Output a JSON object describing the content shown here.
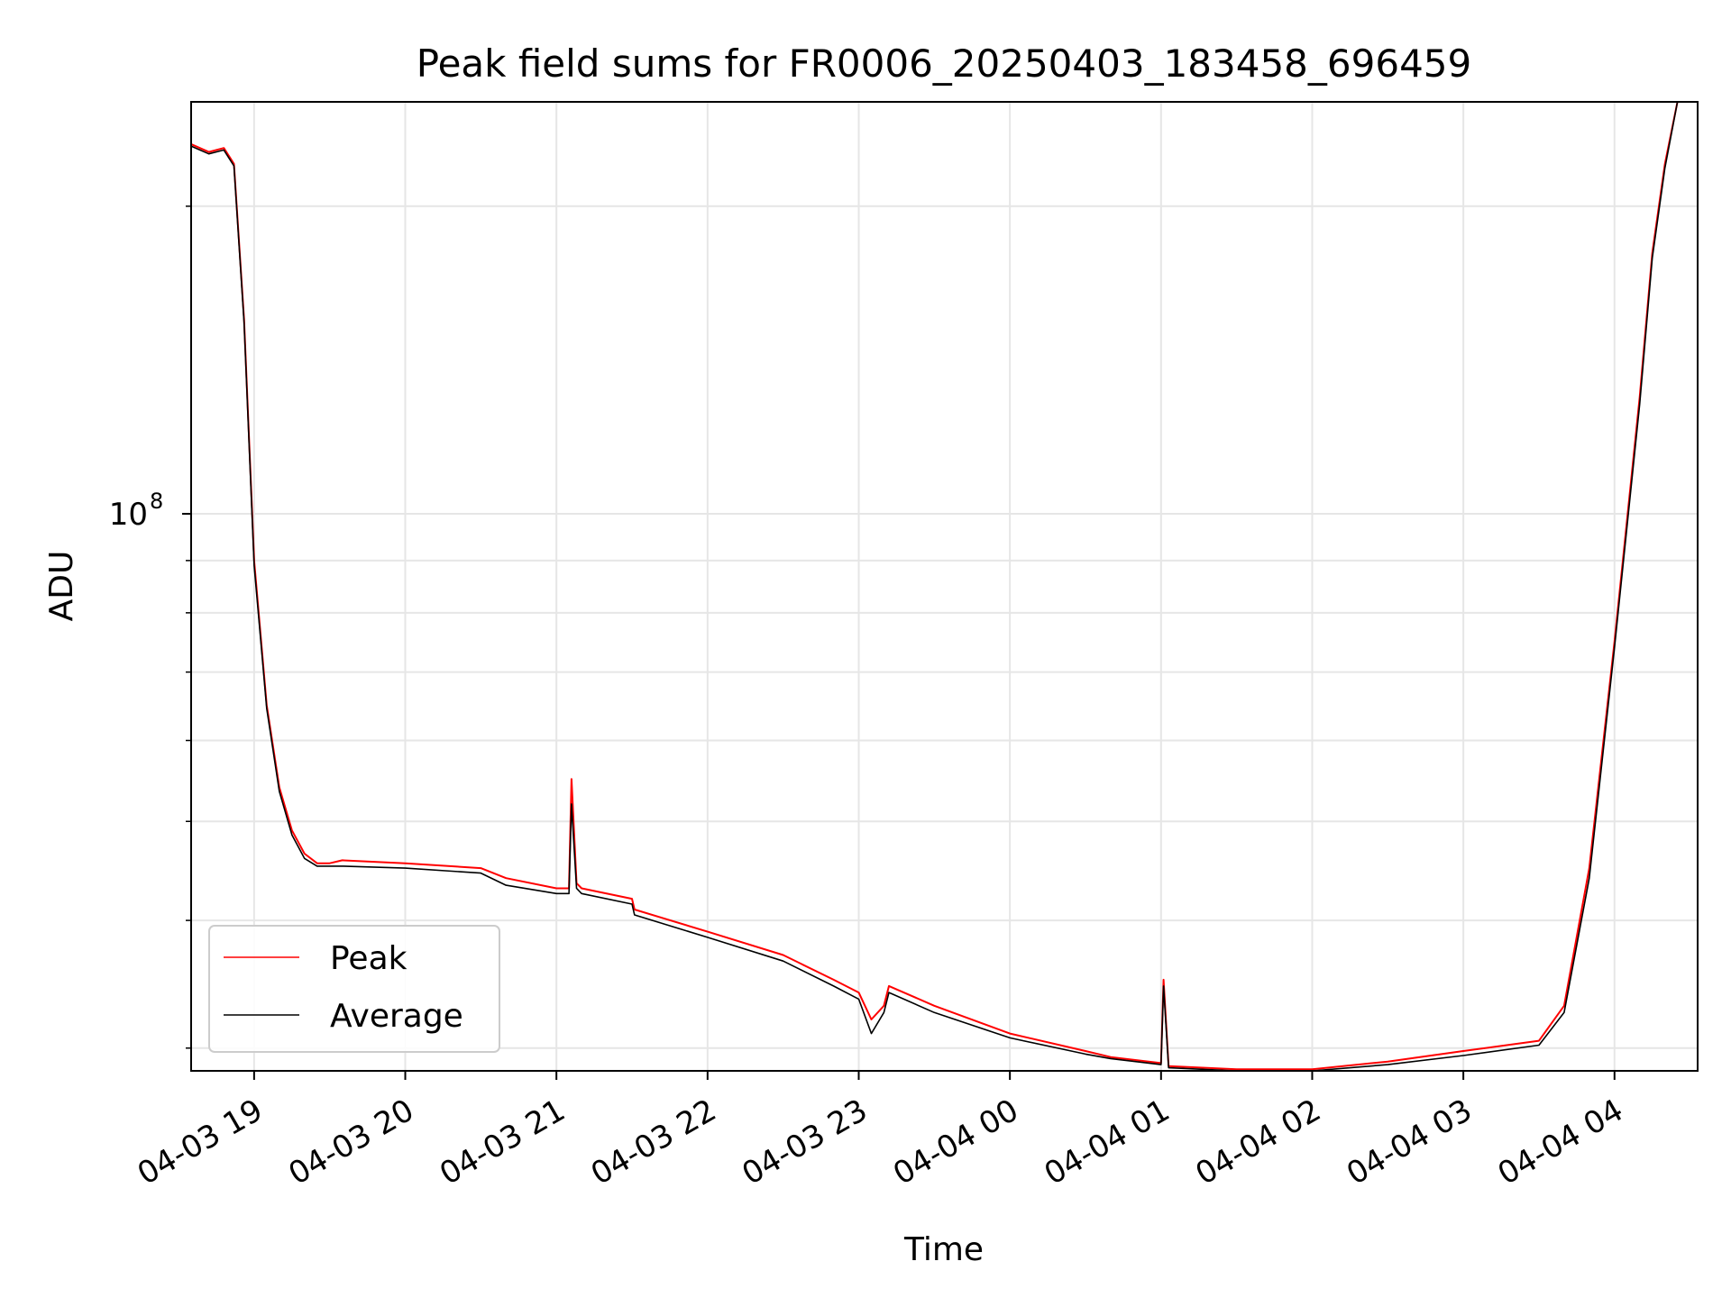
{
  "chart_data": {
    "type": "line",
    "title": "Peak field sums for FR0006_20250403_183458_696459",
    "xlabel": "Time",
    "ylabel": "ADU",
    "yscale": "log",
    "xlim": [
      "2025-04-03 18:35",
      "2025-04-04 04:33"
    ],
    "ylim": [
      28500000,
      253000000
    ],
    "x_ticks": [
      "04-03 19",
      "04-03 20",
      "04-03 21",
      "04-03 22",
      "04-03 23",
      "04-04 00",
      "04-04 01",
      "04-04 02",
      "04-04 03",
      "04-04 04"
    ],
    "y_major_tick_label": {
      "base": "10",
      "exponent": "8"
    },
    "y_major_tick_value": 100000000,
    "y_minor_tick_values": [
      30000000,
      40000000,
      50000000,
      60000000,
      70000000,
      80000000,
      90000000,
      200000000
    ],
    "grid": true,
    "legend_position": "lower-left",
    "series": [
      {
        "name": "Peak",
        "color": "#ff0000",
        "x": [
          "2025-04-03 18:35",
          "2025-04-03 18:42",
          "2025-04-03 18:48",
          "2025-04-03 18:52",
          "2025-04-03 18:56",
          "2025-04-03 19:00",
          "2025-04-03 19:05",
          "2025-04-03 19:10",
          "2025-04-03 19:15",
          "2025-04-03 19:20",
          "2025-04-03 19:25",
          "2025-04-03 19:30",
          "2025-04-03 19:35",
          "2025-04-03 20:00",
          "2025-04-03 20:30",
          "2025-04-03 20:40",
          "2025-04-03 21:00",
          "2025-04-03 21:05",
          "2025-04-03 21:06",
          "2025-04-03 21:08",
          "2025-04-03 21:10",
          "2025-04-03 21:30",
          "2025-04-03 21:31",
          "2025-04-03 22:00",
          "2025-04-03 22:30",
          "2025-04-03 22:50",
          "2025-04-03 23:00",
          "2025-04-03 23:05",
          "2025-04-03 23:10",
          "2025-04-03 23:12",
          "2025-04-03 23:30",
          "2025-04-04 00:00",
          "2025-04-04 00:30",
          "2025-04-04 00:40",
          "2025-04-04 01:00",
          "2025-04-04 01:01",
          "2025-04-04 01:03",
          "2025-04-04 01:30",
          "2025-04-04 02:00",
          "2025-04-04 02:30",
          "2025-04-04 03:00",
          "2025-04-04 03:30",
          "2025-04-04 03:40",
          "2025-04-04 03:50",
          "2025-04-04 04:00",
          "2025-04-04 04:10",
          "2025-04-04 04:15",
          "2025-04-04 04:20",
          "2025-04-04 04:25",
          "2025-04-04 04:33"
        ],
        "y": [
          230000000,
          226000000,
          228000000,
          220000000,
          155000000,
          90000000,
          65000000,
          54000000,
          49000000,
          46500000,
          45500000,
          45500000,
          45800000,
          45500000,
          45000000,
          44000000,
          43000000,
          43000000,
          55000000,
          43500000,
          43000000,
          42000000,
          41000000,
          39000000,
          37000000,
          35000000,
          34000000,
          32000000,
          33000000,
          34500000,
          33000000,
          31000000,
          29800000,
          29400000,
          29000000,
          35000000,
          28800000,
          28600000,
          28600000,
          29100000,
          29800000,
          30500000,
          33000000,
          45000000,
          75000000,
          130000000,
          180000000,
          220000000,
          253000000,
          253000000
        ]
      },
      {
        "name": "Average",
        "color": "#000000",
        "x": [
          "2025-04-03 18:35",
          "2025-04-03 18:42",
          "2025-04-03 18:48",
          "2025-04-03 18:52",
          "2025-04-03 18:56",
          "2025-04-03 19:00",
          "2025-04-03 19:05",
          "2025-04-03 19:10",
          "2025-04-03 19:15",
          "2025-04-03 19:20",
          "2025-04-03 19:25",
          "2025-04-03 19:30",
          "2025-04-03 19:35",
          "2025-04-03 20:00",
          "2025-04-03 20:30",
          "2025-04-03 20:40",
          "2025-04-03 21:00",
          "2025-04-03 21:05",
          "2025-04-03 21:06",
          "2025-04-03 21:08",
          "2025-04-03 21:10",
          "2025-04-03 21:30",
          "2025-04-03 21:31",
          "2025-04-03 22:00",
          "2025-04-03 22:30",
          "2025-04-03 22:50",
          "2025-04-03 23:00",
          "2025-04-03 23:05",
          "2025-04-03 23:10",
          "2025-04-03 23:12",
          "2025-04-03 23:30",
          "2025-04-04 00:00",
          "2025-04-04 00:30",
          "2025-04-04 00:40",
          "2025-04-04 01:00",
          "2025-04-04 01:01",
          "2025-04-04 01:03",
          "2025-04-04 01:30",
          "2025-04-04 02:00",
          "2025-04-04 02:30",
          "2025-04-04 03:00",
          "2025-04-04 03:30",
          "2025-04-04 03:40",
          "2025-04-04 03:50",
          "2025-04-04 04:00",
          "2025-04-04 04:10",
          "2025-04-04 04:15",
          "2025-04-04 04:20",
          "2025-04-04 04:25",
          "2025-04-04 04:33"
        ],
        "y": [
          229000000,
          225000000,
          227000000,
          219000000,
          154000000,
          89000000,
          64500000,
          53500000,
          48500000,
          46000000,
          45200000,
          45200000,
          45200000,
          45000000,
          44500000,
          43300000,
          42500000,
          42500000,
          52000000,
          43000000,
          42500000,
          41500000,
          40500000,
          38500000,
          36500000,
          34500000,
          33500000,
          31000000,
          32500000,
          34000000,
          32500000,
          30700000,
          29600000,
          29300000,
          28900000,
          34500000,
          28700000,
          28500000,
          28500000,
          28900000,
          29500000,
          30200000,
          32500000,
          44000000,
          74000000,
          128000000,
          178000000,
          218000000,
          253000000,
          253000000
        ]
      }
    ]
  }
}
